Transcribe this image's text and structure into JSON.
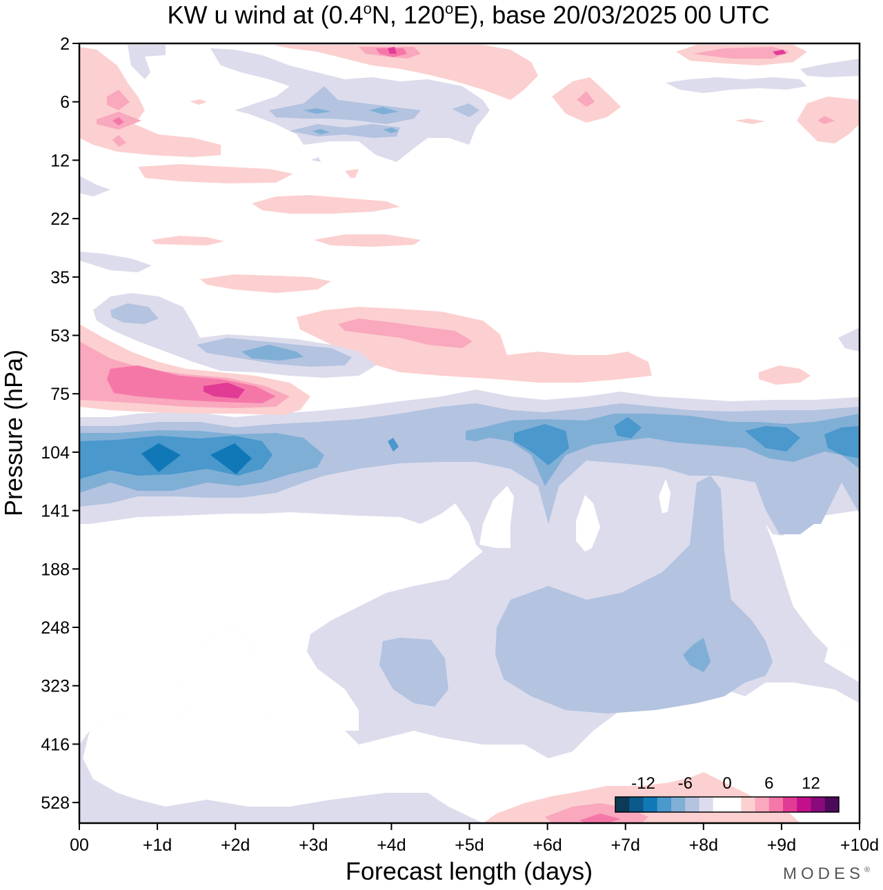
{
  "chart_data": {
    "type": "heatmap",
    "subtype": "filled-contour",
    "title_parts": {
      "prefix": "KW u wind at (0.4",
      "deg1": "o",
      "mid": "N, 120",
      "deg2": "o",
      "suffix": "E),  base 20/03/2025  00 UTC"
    },
    "xlabel": "Forecast length (days)",
    "ylabel": "Pressure (hPa)",
    "x_ticks": [
      "00",
      "+1d",
      "+2d",
      "+3d",
      "+4d",
      "+5d",
      "+6d",
      "+7d",
      "+8d",
      "+9d",
      "+10d"
    ],
    "x_range_days": [
      0,
      10
    ],
    "y_ticks": [
      "2",
      "6",
      "12",
      "22",
      "35",
      "53",
      "75",
      "104",
      "141",
      "188",
      "248",
      "323",
      "416",
      "528"
    ],
    "y_scale": "log-pressure (top = 2 hPa, bottom ~ 700 hPa)",
    "grid": false,
    "colorbar": {
      "labels": [
        "-12",
        "-6",
        "0",
        "6",
        "12"
      ],
      "label_positions": [
        -12,
        -6,
        0,
        6,
        12
      ],
      "range": [
        -16,
        16
      ],
      "step": 2,
      "colors": [
        "#0c3a57",
        "#0b5a8a",
        "#1178b8",
        "#4a98cc",
        "#80afd6",
        "#b3c3e0",
        "#dcdcec",
        "#ffffff",
        "#ffffff",
        "#fcd0d0",
        "#f9a8be",
        "#f577a8",
        "#e23b96",
        "#c2108a",
        "#8a0a7c",
        "#4b0a5c"
      ],
      "placement": "bottom-right"
    },
    "features": [
      {
        "description": "easterly jet core",
        "sign": "negative",
        "pressure_hPa": 104,
        "days": [
          0,
          10
        ],
        "min_ms": -10
      },
      {
        "description": "westerly maximum",
        "sign": "positive",
        "pressure_hPa": 70,
        "days": [
          0.3,
          3
        ],
        "max_ms": 8
      },
      {
        "description": "weak easterlies",
        "sign": "negative",
        "pressure_hPa": [
          141,
          500
        ],
        "days": [
          0,
          10
        ],
        "min_ms": -4
      },
      {
        "description": "upper stratosphere alternating weak winds",
        "pressure_hPa": [
          2,
          12
        ],
        "days": [
          0,
          10
        ],
        "range_ms": [
          -6,
          6
        ]
      }
    ]
  },
  "brand": {
    "name": "MODES",
    "mark": "®"
  }
}
